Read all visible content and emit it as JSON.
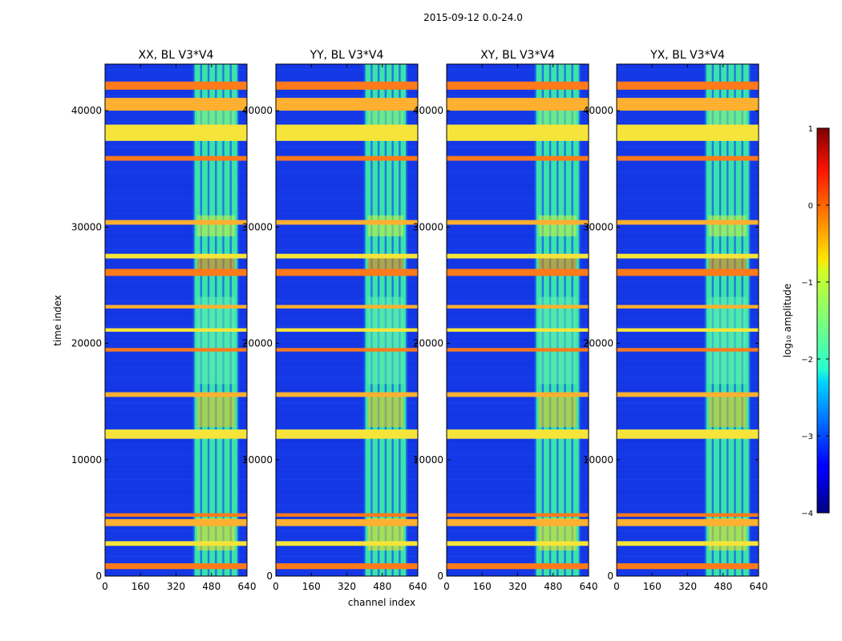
{
  "figure": {
    "suptitle": "2015-09-12 0.0-24.0",
    "xlabel": "channel index",
    "ylabel": "time index"
  },
  "colorbar": {
    "label": "log₁₀ amplitude",
    "range": [
      -4,
      1
    ],
    "ticks": [
      -4,
      -3,
      -2,
      -1,
      0,
      1
    ],
    "tick_labels": [
      "−4",
      "−3",
      "−2",
      "−1",
      "0",
      "1"
    ],
    "colormap": "jet"
  },
  "chart_data": [
    {
      "type": "heatmap",
      "title": "XX, BL V3*V4",
      "xlabel": "channel index",
      "ylabel": "time index",
      "xlim": [
        0,
        640
      ],
      "ylim": [
        0,
        44000
      ],
      "xticks": [
        0,
        160,
        320,
        480,
        640
      ],
      "yticks": [
        0,
        10000,
        20000,
        30000,
        40000
      ],
      "colorbar_range": [
        -4,
        1
      ],
      "bright_channel_band": [
        400,
        600
      ],
      "flagged_time_bands": [
        [
          600,
          1100
        ],
        [
          2600,
          3000
        ],
        [
          4300,
          4900
        ],
        [
          5100,
          5400
        ],
        [
          11800,
          12600
        ],
        [
          15400,
          15800
        ],
        [
          19300,
          19600
        ],
        [
          21000,
          21300
        ],
        [
          23000,
          23300
        ],
        [
          25800,
          26400
        ],
        [
          27300,
          27700
        ],
        [
          30200,
          30600
        ],
        [
          35700,
          36100
        ],
        [
          37400,
          38800
        ],
        [
          40000,
          41100
        ],
        [
          41800,
          42500
        ]
      ]
    },
    {
      "type": "heatmap",
      "title": "YY, BL V3*V4",
      "xlabel": "channel index",
      "ylabel": "time index",
      "xlim": [
        0,
        640
      ],
      "ylim": [
        0,
        44000
      ],
      "xticks": [
        0,
        160,
        320,
        480,
        640
      ],
      "yticks": [
        0,
        10000,
        20000,
        30000,
        40000
      ],
      "colorbar_range": [
        -4,
        1
      ],
      "bright_channel_band": [
        400,
        590
      ],
      "flagged_time_bands": [
        [
          600,
          1100
        ],
        [
          2600,
          3000
        ],
        [
          4300,
          4900
        ],
        [
          5100,
          5400
        ],
        [
          11800,
          12600
        ],
        [
          15400,
          15800
        ],
        [
          19300,
          19600
        ],
        [
          21000,
          21300
        ],
        [
          23000,
          23300
        ],
        [
          25800,
          26400
        ],
        [
          27300,
          27700
        ],
        [
          30200,
          30600
        ],
        [
          35700,
          36100
        ],
        [
          37400,
          38800
        ],
        [
          40000,
          41100
        ],
        [
          41800,
          42500
        ]
      ]
    },
    {
      "type": "heatmap",
      "title": "XY, BL V3*V4",
      "xlabel": "channel index",
      "ylabel": "time index",
      "xlim": [
        0,
        640
      ],
      "ylim": [
        0,
        44000
      ],
      "xticks": [
        0,
        160,
        320,
        480,
        640
      ],
      "yticks": [
        0,
        10000,
        20000,
        30000,
        40000
      ],
      "colorbar_range": [
        -4,
        1
      ],
      "bright_channel_band": [
        400,
        600
      ],
      "flagged_time_bands": [
        [
          600,
          1100
        ],
        [
          2600,
          3000
        ],
        [
          4300,
          4900
        ],
        [
          5100,
          5400
        ],
        [
          11800,
          12600
        ],
        [
          15400,
          15800
        ],
        [
          19300,
          19600
        ],
        [
          21000,
          21300
        ],
        [
          23000,
          23300
        ],
        [
          25800,
          26400
        ],
        [
          27300,
          27700
        ],
        [
          30200,
          30600
        ],
        [
          35700,
          36100
        ],
        [
          37400,
          38800
        ],
        [
          40000,
          41100
        ],
        [
          41800,
          42500
        ]
      ]
    },
    {
      "type": "heatmap",
      "title": "YX, BL V3*V4",
      "xlabel": "channel index",
      "ylabel": "time index",
      "xlim": [
        0,
        640
      ],
      "ylim": [
        0,
        44000
      ],
      "xticks": [
        0,
        160,
        320,
        480,
        640
      ],
      "yticks": [
        0,
        10000,
        20000,
        30000,
        40000
      ],
      "colorbar_range": [
        -4,
        1
      ],
      "bright_channel_band": [
        400,
        600
      ],
      "flagged_time_bands": [
        [
          600,
          1100
        ],
        [
          2600,
          3000
        ],
        [
          4300,
          4900
        ],
        [
          5100,
          5400
        ],
        [
          11800,
          12600
        ],
        [
          15400,
          15800
        ],
        [
          19300,
          19600
        ],
        [
          21000,
          21300
        ],
        [
          23000,
          23300
        ],
        [
          25800,
          26400
        ],
        [
          27300,
          27700
        ],
        [
          30200,
          30600
        ],
        [
          35700,
          36100
        ],
        [
          37400,
          38800
        ],
        [
          40000,
          41100
        ],
        [
          41800,
          42500
        ]
      ]
    }
  ]
}
